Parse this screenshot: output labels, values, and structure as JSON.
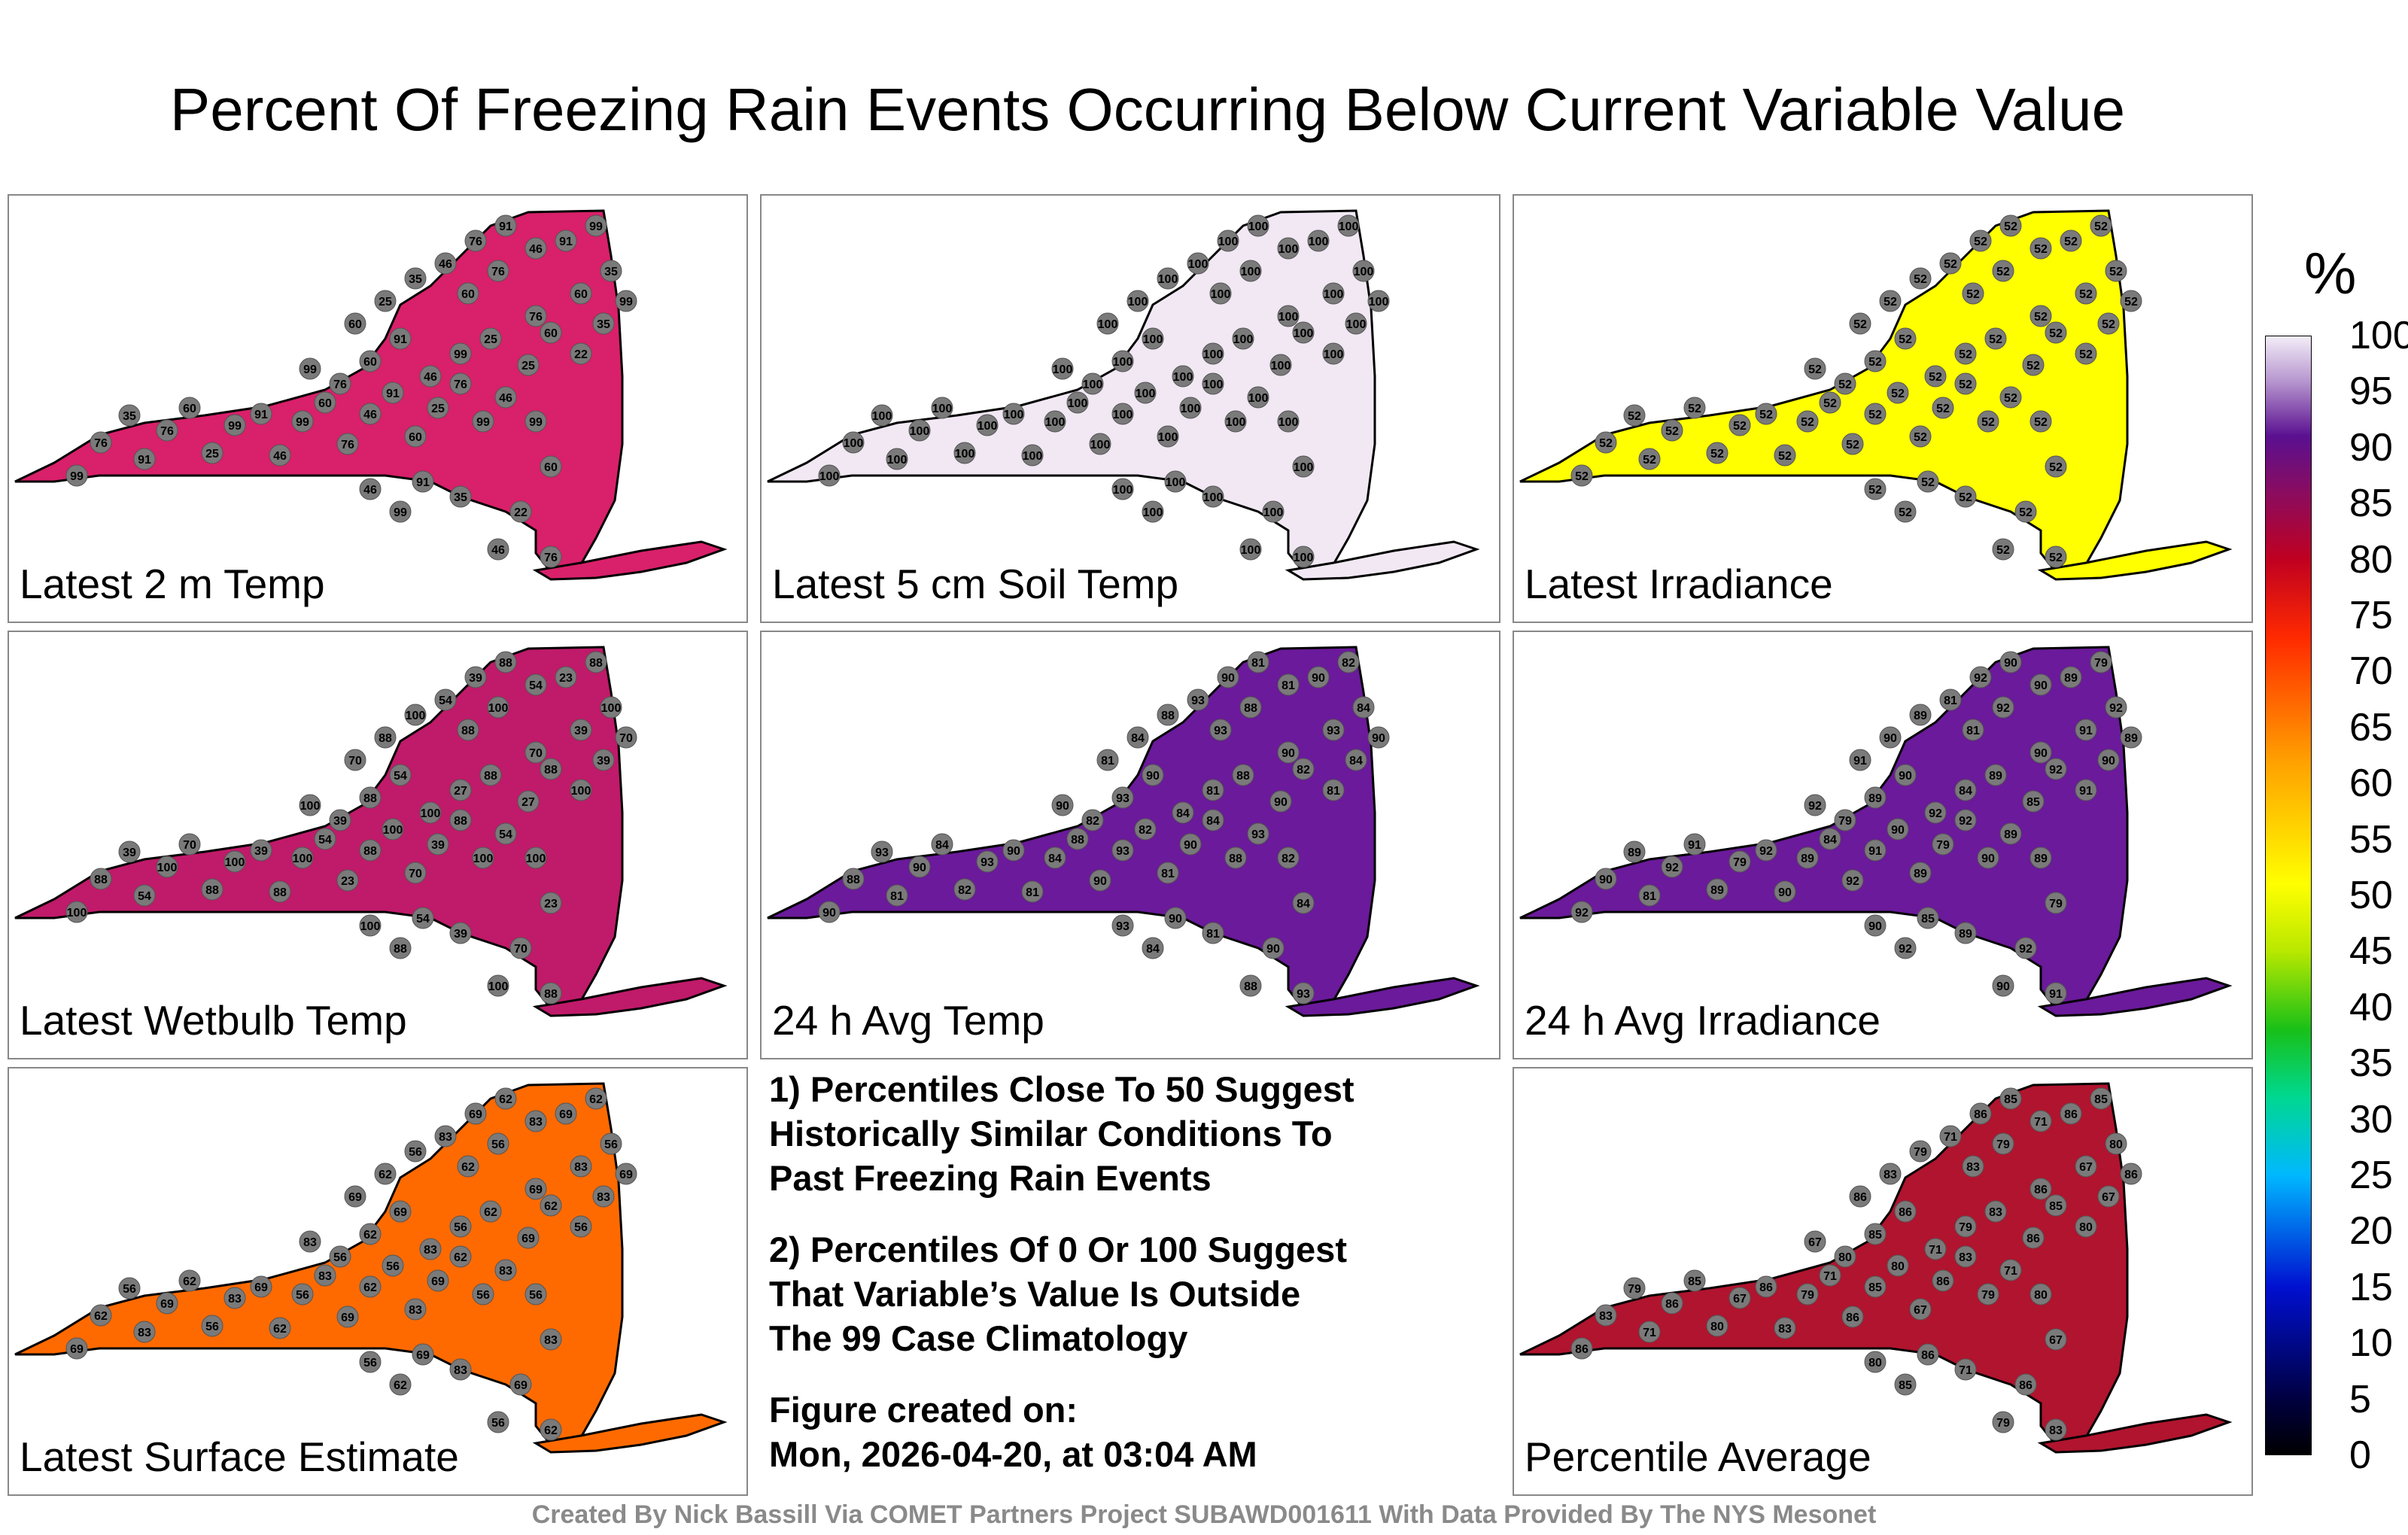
{
  "title": "Percent Of Freezing Rain Events Occurring Below Current Variable Value",
  "panels": [
    {
      "label": "Latest 2 m Temp",
      "fill": "#d9206a",
      "stations": [
        "99",
        "76",
        "35",
        "91",
        "76",
        "60",
        "25",
        "99",
        "91",
        "46",
        "99",
        "60",
        "76",
        "46",
        "91",
        "60",
        "25",
        "76",
        "99",
        "46",
        "25",
        "60",
        "22",
        "35",
        "99",
        "60",
        "76",
        "46",
        "91",
        "99",
        "35",
        "60",
        "76",
        "25",
        "99",
        "46",
        "91",
        "60",
        "76",
        "99",
        "60",
        "25",
        "35",
        "46",
        "76",
        "91",
        "99",
        "60",
        "22",
        "76",
        "46",
        "35",
        "91",
        "99",
        "46"
      ]
    },
    {
      "label": "Latest 5 cm Soil Temp",
      "fill": "#f1e8f4",
      "stations": [
        "100",
        "100",
        "100",
        "100",
        "100",
        "100",
        "100",
        "100",
        "100",
        "100",
        "100",
        "100",
        "100",
        "100",
        "100",
        "100",
        "100",
        "100",
        "100",
        "100",
        "100",
        "100",
        "100",
        "100",
        "100",
        "100",
        "100",
        "100",
        "100",
        "100",
        "100",
        "100",
        "100",
        "100",
        "100",
        "100",
        "100",
        "100",
        "100",
        "100",
        "100",
        "100",
        "100",
        "100",
        "100",
        "100",
        "100",
        "100",
        "100",
        "100",
        "100",
        "100",
        "100",
        "100",
        "100"
      ]
    },
    {
      "label": "Latest Irradiance",
      "fill": "#ffff00",
      "stations": [
        "52",
        "52",
        "52",
        "52",
        "52",
        "52",
        "52",
        "52",
        "52",
        "52",
        "52",
        "52",
        "52",
        "52",
        "52",
        "52",
        "52",
        "52",
        "52",
        "52",
        "52",
        "52",
        "52",
        "52",
        "52",
        "52",
        "52",
        "52",
        "52",
        "52",
        "52",
        "52",
        "52",
        "52",
        "52",
        "52",
        "52",
        "52",
        "52",
        "52",
        "52",
        "52",
        "52",
        "52",
        "52",
        "52",
        "52",
        "52",
        "52",
        "52",
        "52",
        "52",
        "52",
        "52",
        "52"
      ]
    },
    {
      "label": "Latest Wetbulb Temp",
      "fill": "#c01a6a",
      "stations": [
        "100",
        "88",
        "39",
        "54",
        "100",
        "70",
        "88",
        "100",
        "39",
        "88",
        "100",
        "54",
        "23",
        "88",
        "100",
        "70",
        "39",
        "88",
        "100",
        "54",
        "27",
        "88",
        "100",
        "39",
        "70",
        "88",
        "100",
        "54",
        "23",
        "88",
        "100",
        "39",
        "70",
        "88",
        "27",
        "100",
        "54",
        "88",
        "39",
        "100",
        "70",
        "88",
        "100",
        "54",
        "39",
        "88",
        "100",
        "23",
        "70",
        "88",
        "100",
        "39",
        "54",
        "88",
        "100"
      ]
    },
    {
      "label": "24 h Avg Temp",
      "fill": "#6a1a9a",
      "stations": [
        "90",
        "88",
        "93",
        "81",
        "90",
        "84",
        "82",
        "93",
        "90",
        "81",
        "84",
        "88",
        "90",
        "93",
        "82",
        "81",
        "90",
        "84",
        "88",
        "93",
        "90",
        "82",
        "81",
        "84",
        "90",
        "93",
        "88",
        "81",
        "90",
        "82",
        "84",
        "93",
        "90",
        "88",
        "81",
        "84",
        "90",
        "93",
        "82",
        "90",
        "81",
        "84",
        "88",
        "93",
        "90",
        "81",
        "82",
        "84",
        "90",
        "93",
        "88",
        "81",
        "90",
        "84",
        "93"
      ]
    },
    {
      "label": "24 h Avg Irradiance",
      "fill": "#6a1a9a",
      "stations": [
        "92",
        "90",
        "89",
        "81",
        "92",
        "91",
        "89",
        "79",
        "92",
        "90",
        "89",
        "84",
        "92",
        "91",
        "90",
        "89",
        "79",
        "92",
        "90",
        "89",
        "85",
        "92",
        "91",
        "90",
        "89",
        "81",
        "92",
        "90",
        "89",
        "79",
        "92",
        "91",
        "90",
        "89",
        "84",
        "92",
        "90",
        "89",
        "79",
        "92",
        "91",
        "90",
        "89",
        "81",
        "92",
        "90",
        "89",
        "79",
        "92",
        "91",
        "90",
        "89",
        "85",
        "92",
        "90"
      ]
    },
    {
      "label": "Latest Surface Estimate",
      "fill": "#ff6a00",
      "stations": [
        "69",
        "62",
        "56",
        "83",
        "69",
        "62",
        "56",
        "83",
        "69",
        "62",
        "56",
        "83",
        "69",
        "62",
        "56",
        "83",
        "69",
        "62",
        "56",
        "83",
        "69",
        "62",
        "56",
        "83",
        "69",
        "62",
        "56",
        "83",
        "69",
        "62",
        "56",
        "83",
        "69",
        "62",
        "56",
        "83",
        "69",
        "62",
        "56",
        "83",
        "69",
        "62",
        "56",
        "83",
        "69",
        "62",
        "56",
        "83",
        "69",
        "62",
        "56",
        "83",
        "69",
        "62",
        "56"
      ]
    },
    {
      "label": "Percentile Average",
      "fill": "#b0142e",
      "stations": [
        "86",
        "83",
        "79",
        "71",
        "86",
        "85",
        "80",
        "67",
        "86",
        "83",
        "79",
        "71",
        "86",
        "85",
        "80",
        "67",
        "86",
        "83",
        "79",
        "71",
        "86",
        "85",
        "80",
        "67",
        "86",
        "83",
        "79",
        "71",
        "86",
        "85",
        "80",
        "67",
        "86",
        "83",
        "79",
        "71",
        "86",
        "85",
        "80",
        "67",
        "86",
        "83",
        "79",
        "71",
        "86",
        "85",
        "80",
        "67",
        "86",
        "83",
        "79",
        "71",
        "86",
        "85",
        "80"
      ]
    }
  ],
  "notes": [
    "1) Percentiles Close To 50 Suggest\nHistorically Similar Conditions To\nPast Freezing Rain Events",
    "2) Percentiles Of 0 Or 100 Suggest\nThat Variable’s Value Is Outside\nThe 99 Case Climatology",
    "Figure created on:\nMon, 2026-04-20, at 03:04 AM"
  ],
  "colorbar": {
    "unit": "%",
    "ticks": [
      "100",
      "95",
      "90",
      "85",
      "80",
      "75",
      "70",
      "65",
      "60",
      "55",
      "50",
      "45",
      "40",
      "35",
      "30",
      "25",
      "20",
      "15",
      "10",
      "5",
      "0"
    ]
  },
  "credit": "Created By Nick Bassill Via COMET Partners Project SUBAWD001611 With Data Provided By The NYS Mesonet",
  "chart_data": {
    "type": "heatmap",
    "title": "Percent Of Freezing Rain Events Occurring Below Current Variable Value",
    "panels": [
      "Latest 2 m Temp",
      "Latest 5 cm Soil Temp",
      "Latest Irradiance",
      "Latest Wetbulb Temp",
      "24 h Avg Temp",
      "24 h Avg Irradiance",
      "Latest Surface Estimate",
      "Percentile Average"
    ],
    "colorbar_range": [
      0,
      100
    ],
    "colorbar_label": "%"
  }
}
